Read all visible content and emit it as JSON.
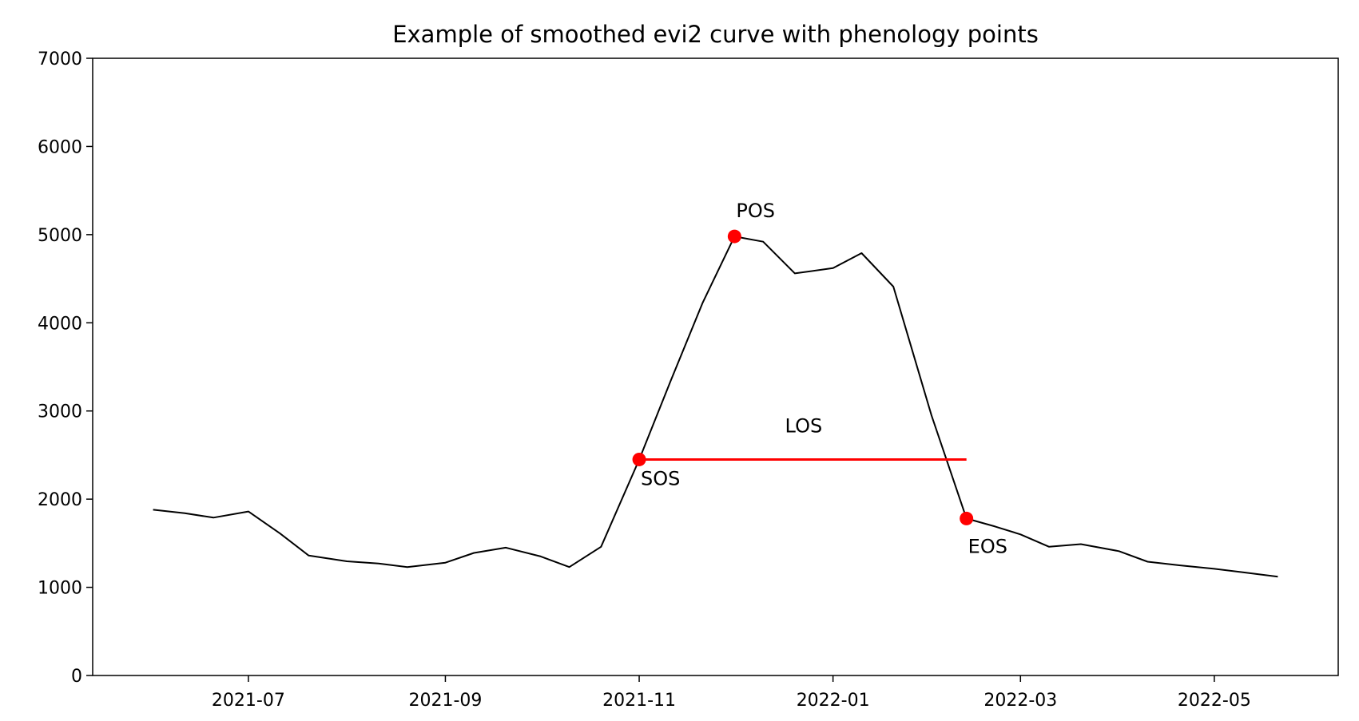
{
  "chart_data": {
    "type": "line",
    "title": "Example of smoothed evi2 curve with phenology points",
    "xlabel": "",
    "ylabel": "",
    "xlim": [
      "2021-05-13",
      "2022-06-09"
    ],
    "ylim": [
      0,
      7000
    ],
    "yticks": [
      0,
      1000,
      2000,
      3000,
      4000,
      5000,
      6000,
      7000
    ],
    "xticks": [
      {
        "date": "2021-07-01",
        "label": "2021-07"
      },
      {
        "date": "2021-09-01",
        "label": "2021-09"
      },
      {
        "date": "2021-11-01",
        "label": "2021-11"
      },
      {
        "date": "2022-01-01",
        "label": "2022-01"
      },
      {
        "date": "2022-03-01",
        "label": "2022-03"
      },
      {
        "date": "2022-05-01",
        "label": "2022-05"
      }
    ],
    "grid": false,
    "line_color": "#000000",
    "marker_color": "#ff0000",
    "series": [
      {
        "x": [
          "2021-06-01",
          "2021-06-11",
          "2021-06-20",
          "2021-07-01",
          "2021-07-11",
          "2021-07-20",
          "2021-08-01",
          "2021-08-11",
          "2021-08-20",
          "2021-09-01",
          "2021-09-10",
          "2021-09-20",
          "2021-10-01",
          "2021-10-10",
          "2021-10-20",
          "2021-11-01",
          "2021-11-11",
          "2021-11-21",
          "2021-12-01",
          "2021-12-10",
          "2021-12-20",
          "2022-01-01",
          "2022-01-10",
          "2022-01-20",
          "2022-02-01",
          "2022-02-12",
          "2022-02-21",
          "2022-03-01",
          "2022-03-10",
          "2022-03-20",
          "2022-04-01",
          "2022-04-10",
          "2022-04-20",
          "2022-05-01",
          "2022-05-10",
          "2022-05-21"
        ],
        "y": [
          1880,
          1840,
          1790,
          1860,
          1610,
          1360,
          1295,
          1270,
          1230,
          1280,
          1390,
          1450,
          1350,
          1230,
          1460,
          2450,
          3350,
          4230,
          4980,
          4920,
          4560,
          4620,
          4790,
          4410,
          2950,
          1780,
          1690,
          1600,
          1460,
          1490,
          1410,
          1290,
          1250,
          1210,
          1170,
          1120
        ]
      }
    ],
    "points": [
      {
        "label": "SOS",
        "x": "2021-11-01",
        "y": 2450
      },
      {
        "label": "POS",
        "x": "2021-12-01",
        "y": 4980
      },
      {
        "label": "EOS",
        "x": "2022-02-12",
        "y": 1780
      }
    ],
    "los": {
      "label": "LOS",
      "x_start": "2021-11-01",
      "x_end": "2022-02-12",
      "y": 2450
    }
  }
}
